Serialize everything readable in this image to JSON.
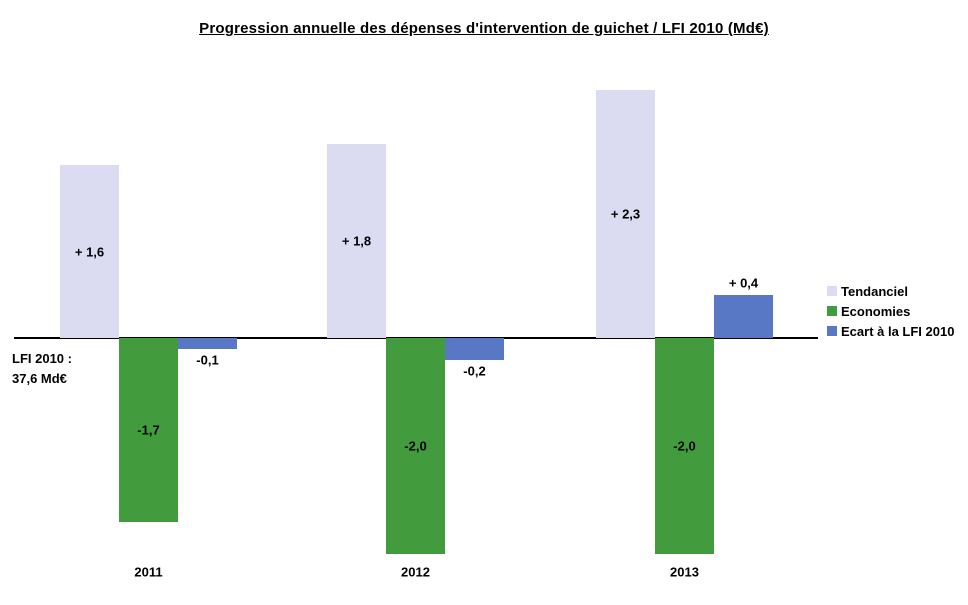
{
  "title": "Progression annuelle des dépenses d'intervention de guichet / LFI 2010 (Md€)",
  "annotation": {
    "line1": "LFI 2010 :",
    "line2": "37,6 Md€"
  },
  "chart_data": {
    "type": "bar",
    "title": "Progression annuelle des dépenses d'intervention de guichet / LFI 2010 (Md€)",
    "categories": [
      "2011",
      "2012",
      "2013"
    ],
    "series": [
      {
        "name": "Tendanciel",
        "color": "#DBDCF1",
        "values": [
          1.6,
          1.8,
          2.3
        ],
        "labels": [
          "+ 1,6",
          "+ 1,8",
          "+ 2,3"
        ],
        "label_position": "center"
      },
      {
        "name": "Economies",
        "color": "#429C3E",
        "values": [
          -1.7,
          -2.0,
          -2.0
        ],
        "labels": [
          "-1,7",
          "-2,0",
          "-2,0"
        ],
        "label_position": "center"
      },
      {
        "name": "Ecart à la LFI 2010",
        "color": "#5878C6",
        "values": [
          -0.1,
          -0.2,
          0.4
        ],
        "labels": [
          "-0,1",
          "-0,2",
          "+ 0,4"
        ],
        "label_position": "outside_end"
      }
    ],
    "baseline_annotation": "LFI 2010 : 37,6 Md€",
    "xlabel": "",
    "ylabel": "",
    "ylim": [
      -2.5,
      2.5
    ],
    "grid": false,
    "legend_position": "right",
    "axis_color": "#000000"
  }
}
